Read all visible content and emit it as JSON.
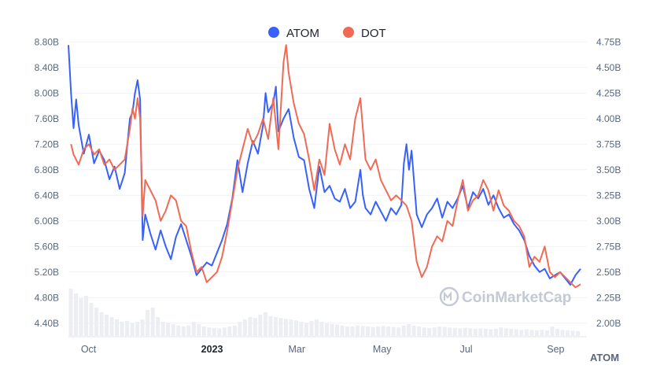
{
  "chart_data": {
    "type": "line",
    "title": "",
    "left_axis": {
      "ticks": [
        "8.80B",
        "8.40B",
        "8.00B",
        "7.60B",
        "7.20B",
        "6.80B",
        "6.40B",
        "6.00B",
        "5.60B",
        "5.20B",
        "4.80B",
        "4.40B"
      ],
      "ylim": [
        4.2,
        9.0
      ],
      "unit": "B"
    },
    "right_axis": {
      "ticks": [
        "4.75B",
        "4.50B",
        "4.25B",
        "4.00B",
        "3.75B",
        "3.50B",
        "3.25B",
        "3.00B",
        "2.75B",
        "2.50B",
        "2.25B",
        "2.00B"
      ],
      "ylim": [
        1.875,
        4.875
      ],
      "unit": "B"
    },
    "x_axis": {
      "labels": [
        {
          "text": "Oct",
          "t": 0.04,
          "bold": false
        },
        {
          "text": "2023",
          "t": 0.28,
          "bold": true
        },
        {
          "text": "Mar",
          "t": 0.445,
          "bold": false
        },
        {
          "text": "May",
          "t": 0.61,
          "bold": false
        },
        {
          "text": "Jul",
          "t": 0.78,
          "bold": false
        },
        {
          "text": "Sep",
          "t": 0.95,
          "bold": false
        }
      ]
    },
    "axis_unit_label": "ATOM",
    "legend": [
      {
        "name": "ATOM",
        "color": "#3861fb"
      },
      {
        "name": "DOT",
        "color": "#f06b55"
      }
    ],
    "watermark": "CoinMarketCap",
    "series": [
      {
        "name": "ATOM",
        "axis": "left",
        "color": "#3861fb",
        "points": [
          [
            0,
            8.75
          ],
          [
            0.005,
            8.0
          ],
          [
            0.01,
            7.45
          ],
          [
            0.015,
            7.9
          ],
          [
            0.02,
            7.5
          ],
          [
            0.03,
            7.05
          ],
          [
            0.04,
            7.35
          ],
          [
            0.05,
            6.9
          ],
          [
            0.06,
            7.1
          ],
          [
            0.07,
            6.95
          ],
          [
            0.08,
            6.65
          ],
          [
            0.09,
            6.85
          ],
          [
            0.1,
            6.5
          ],
          [
            0.11,
            6.75
          ],
          [
            0.115,
            7.2
          ],
          [
            0.12,
            7.6
          ],
          [
            0.125,
            7.7
          ],
          [
            0.13,
            8.0
          ],
          [
            0.135,
            8.2
          ],
          [
            0.14,
            7.9
          ],
          [
            0.145,
            5.7
          ],
          [
            0.15,
            6.1
          ],
          [
            0.16,
            5.8
          ],
          [
            0.17,
            5.55
          ],
          [
            0.18,
            5.85
          ],
          [
            0.19,
            5.6
          ],
          [
            0.2,
            5.4
          ],
          [
            0.21,
            5.75
          ],
          [
            0.22,
            5.95
          ],
          [
            0.23,
            5.7
          ],
          [
            0.24,
            5.45
          ],
          [
            0.25,
            5.15
          ],
          [
            0.26,
            5.25
          ],
          [
            0.27,
            5.35
          ],
          [
            0.28,
            5.3
          ],
          [
            0.29,
            5.5
          ],
          [
            0.3,
            5.7
          ],
          [
            0.31,
            5.95
          ],
          [
            0.32,
            6.35
          ],
          [
            0.33,
            6.95
          ],
          [
            0.34,
            6.45
          ],
          [
            0.35,
            6.9
          ],
          [
            0.36,
            7.25
          ],
          [
            0.37,
            7.05
          ],
          [
            0.38,
            7.5
          ],
          [
            0.385,
            8.0
          ],
          [
            0.39,
            7.7
          ],
          [
            0.4,
            7.85
          ],
          [
            0.405,
            8.1
          ],
          [
            0.41,
            7.4
          ],
          [
            0.42,
            7.6
          ],
          [
            0.43,
            7.75
          ],
          [
            0.44,
            7.3
          ],
          [
            0.45,
            7.0
          ],
          [
            0.46,
            6.95
          ],
          [
            0.47,
            6.5
          ],
          [
            0.48,
            6.2
          ],
          [
            0.49,
            6.85
          ],
          [
            0.5,
            6.45
          ],
          [
            0.51,
            6.55
          ],
          [
            0.52,
            6.35
          ],
          [
            0.53,
            6.3
          ],
          [
            0.54,
            6.5
          ],
          [
            0.55,
            6.2
          ],
          [
            0.56,
            6.3
          ],
          [
            0.57,
            6.8
          ],
          [
            0.575,
            6.4
          ],
          [
            0.58,
            6.2
          ],
          [
            0.59,
            6.1
          ],
          [
            0.6,
            6.3
          ],
          [
            0.61,
            6.15
          ],
          [
            0.62,
            6.0
          ],
          [
            0.63,
            6.2
          ],
          [
            0.64,
            6.1
          ],
          [
            0.65,
            6.25
          ],
          [
            0.655,
            6.9
          ],
          [
            0.66,
            7.2
          ],
          [
            0.665,
            6.8
          ],
          [
            0.67,
            7.1
          ],
          [
            0.68,
            6.1
          ],
          [
            0.69,
            5.9
          ],
          [
            0.7,
            6.1
          ],
          [
            0.71,
            6.2
          ],
          [
            0.72,
            6.35
          ],
          [
            0.73,
            6.05
          ],
          [
            0.74,
            6.3
          ],
          [
            0.75,
            6.2
          ],
          [
            0.76,
            6.35
          ],
          [
            0.77,
            6.55
          ],
          [
            0.78,
            6.2
          ],
          [
            0.79,
            6.45
          ],
          [
            0.8,
            6.35
          ],
          [
            0.81,
            6.5
          ],
          [
            0.82,
            6.25
          ],
          [
            0.83,
            6.4
          ],
          [
            0.84,
            6.2
          ],
          [
            0.85,
            6.05
          ],
          [
            0.86,
            6.1
          ],
          [
            0.87,
            5.95
          ],
          [
            0.88,
            5.85
          ],
          [
            0.89,
            5.7
          ],
          [
            0.9,
            5.45
          ],
          [
            0.91,
            5.3
          ],
          [
            0.92,
            5.2
          ],
          [
            0.93,
            5.25
          ],
          [
            0.94,
            5.1
          ],
          [
            0.95,
            5.15
          ],
          [
            0.96,
            5.2
          ],
          [
            0.97,
            5.1
          ],
          [
            0.98,
            5.0
          ],
          [
            0.99,
            5.15
          ],
          [
            1.0,
            5.25
          ]
        ]
      },
      {
        "name": "DOT",
        "axis": "right",
        "color": "#f06b55",
        "points": [
          [
            0.005,
            3.75
          ],
          [
            0.01,
            3.65
          ],
          [
            0.02,
            3.55
          ],
          [
            0.03,
            3.7
          ],
          [
            0.04,
            3.75
          ],
          [
            0.05,
            3.65
          ],
          [
            0.06,
            3.7
          ],
          [
            0.07,
            3.55
          ],
          [
            0.08,
            3.6
          ],
          [
            0.09,
            3.5
          ],
          [
            0.1,
            3.55
          ],
          [
            0.11,
            3.6
          ],
          [
            0.12,
            3.9
          ],
          [
            0.125,
            4.1
          ],
          [
            0.13,
            4.0
          ],
          [
            0.135,
            4.2
          ],
          [
            0.14,
            4.0
          ],
          [
            0.145,
            3.05
          ],
          [
            0.15,
            3.4
          ],
          [
            0.16,
            3.3
          ],
          [
            0.17,
            3.2
          ],
          [
            0.18,
            3.0
          ],
          [
            0.19,
            3.1
          ],
          [
            0.2,
            3.25
          ],
          [
            0.21,
            3.2
          ],
          [
            0.22,
            3.0
          ],
          [
            0.23,
            2.95
          ],
          [
            0.24,
            2.7
          ],
          [
            0.25,
            2.5
          ],
          [
            0.26,
            2.55
          ],
          [
            0.27,
            2.4
          ],
          [
            0.28,
            2.45
          ],
          [
            0.29,
            2.5
          ],
          [
            0.3,
            2.65
          ],
          [
            0.31,
            2.9
          ],
          [
            0.32,
            3.2
          ],
          [
            0.33,
            3.5
          ],
          [
            0.34,
            3.7
          ],
          [
            0.35,
            3.9
          ],
          [
            0.36,
            3.75
          ],
          [
            0.37,
            3.85
          ],
          [
            0.38,
            4.0
          ],
          [
            0.39,
            3.8
          ],
          [
            0.4,
            4.2
          ],
          [
            0.41,
            3.7
          ],
          [
            0.42,
            4.55
          ],
          [
            0.425,
            4.72
          ],
          [
            0.43,
            4.45
          ],
          [
            0.44,
            4.15
          ],
          [
            0.45,
            3.95
          ],
          [
            0.46,
            3.85
          ],
          [
            0.47,
            3.6
          ],
          [
            0.48,
            3.3
          ],
          [
            0.49,
            3.6
          ],
          [
            0.5,
            3.45
          ],
          [
            0.51,
            3.95
          ],
          [
            0.52,
            3.7
          ],
          [
            0.53,
            3.55
          ],
          [
            0.54,
            3.75
          ],
          [
            0.55,
            3.6
          ],
          [
            0.56,
            4.0
          ],
          [
            0.57,
            4.2
          ],
          [
            0.575,
            3.9
          ],
          [
            0.58,
            3.6
          ],
          [
            0.59,
            3.5
          ],
          [
            0.6,
            3.6
          ],
          [
            0.61,
            3.4
          ],
          [
            0.62,
            3.3
          ],
          [
            0.63,
            3.2
          ],
          [
            0.64,
            3.25
          ],
          [
            0.65,
            3.2
          ],
          [
            0.66,
            3.15
          ],
          [
            0.67,
            3.0
          ],
          [
            0.68,
            2.6
          ],
          [
            0.69,
            2.45
          ],
          [
            0.7,
            2.55
          ],
          [
            0.71,
            2.75
          ],
          [
            0.72,
            2.85
          ],
          [
            0.73,
            2.8
          ],
          [
            0.74,
            3.0
          ],
          [
            0.75,
            2.95
          ],
          [
            0.76,
            3.2
          ],
          [
            0.77,
            3.4
          ],
          [
            0.78,
            3.1
          ],
          [
            0.79,
            3.2
          ],
          [
            0.8,
            3.25
          ],
          [
            0.81,
            3.4
          ],
          [
            0.82,
            3.3
          ],
          [
            0.83,
            3.1
          ],
          [
            0.84,
            3.3
          ],
          [
            0.85,
            3.15
          ],
          [
            0.86,
            3.1
          ],
          [
            0.87,
            3.0
          ],
          [
            0.88,
            2.95
          ],
          [
            0.89,
            2.85
          ],
          [
            0.9,
            2.55
          ],
          [
            0.91,
            2.65
          ],
          [
            0.92,
            2.6
          ],
          [
            0.93,
            2.75
          ],
          [
            0.94,
            2.5
          ],
          [
            0.95,
            2.45
          ],
          [
            0.96,
            2.5
          ],
          [
            0.97,
            2.45
          ],
          [
            0.98,
            2.4
          ],
          [
            0.99,
            2.35
          ],
          [
            1.0,
            2.38
          ]
        ]
      }
    ],
    "volume_bars": [
      1.0,
      0.9,
      0.8,
      0.85,
      0.7,
      0.6,
      0.5,
      0.45,
      0.4,
      0.35,
      0.3,
      0.32,
      0.28,
      0.3,
      0.35,
      0.55,
      0.6,
      0.4,
      0.3,
      0.28,
      0.25,
      0.22,
      0.2,
      0.22,
      0.3,
      0.25,
      0.2,
      0.18,
      0.17,
      0.16,
      0.18,
      0.2,
      0.22,
      0.3,
      0.35,
      0.4,
      0.38,
      0.45,
      0.5,
      0.42,
      0.4,
      0.38,
      0.36,
      0.35,
      0.33,
      0.3,
      0.28,
      0.32,
      0.35,
      0.3,
      0.26,
      0.25,
      0.24,
      0.22,
      0.2,
      0.2,
      0.22,
      0.21,
      0.2,
      0.19,
      0.2,
      0.21,
      0.2,
      0.19,
      0.18,
      0.22,
      0.25,
      0.22,
      0.2,
      0.18,
      0.17,
      0.18,
      0.2,
      0.19,
      0.18,
      0.17,
      0.16,
      0.17,
      0.16,
      0.15,
      0.16,
      0.15,
      0.14,
      0.15,
      0.18,
      0.16,
      0.15,
      0.14,
      0.13,
      0.14,
      0.13,
      0.12,
      0.13,
      0.12,
      0.2,
      0.15,
      0.13,
      0.12,
      0.11,
      0.1
    ]
  }
}
